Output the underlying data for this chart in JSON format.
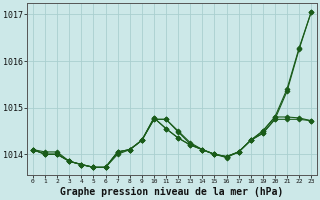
{
  "background_color": "#cce8e8",
  "grid_color": "#aacfcf",
  "line_color": "#1a5c1a",
  "xlabel": "Graphe pression niveau de la mer (hPa)",
  "xlabel_fontsize": 7,
  "xlim": [
    -0.5,
    23.5
  ],
  "ylim": [
    1013.55,
    1017.25
  ],
  "yticks": [
    1014,
    1015,
    1016,
    1017
  ],
  "xticks": [
    0,
    1,
    2,
    3,
    4,
    5,
    6,
    7,
    8,
    9,
    10,
    11,
    12,
    13,
    14,
    15,
    16,
    17,
    18,
    19,
    20,
    21,
    22,
    23
  ],
  "series": [
    {
      "y": [
        1014.1,
        1014.05,
        1014.05,
        1013.85,
        1013.78,
        1013.72,
        1013.72,
        1014.05,
        1014.1,
        1014.3,
        1014.75,
        1014.75,
        1014.5,
        1014.25,
        1014.1,
        1014.0,
        1013.95,
        1014.05,
        1014.3,
        1014.45,
        1014.75,
        1015.35,
        1016.25,
        1017.05
      ],
      "linestyle": "-",
      "marker": "D",
      "markersize": 2.5
    },
    {
      "y": [
        1014.1,
        1014.0,
        1014.0,
        1013.85,
        1013.78,
        1013.72,
        1013.72,
        1014.05,
        1014.1,
        1014.3,
        1014.75,
        1014.75,
        1014.48,
        1014.22,
        1014.1,
        1014.0,
        1013.95,
        1014.05,
        1014.3,
        1014.45,
        1014.75,
        1014.75,
        1014.75,
        1014.72
      ],
      "linestyle": "-",
      "marker": "D",
      "markersize": 2.5
    },
    {
      "y": [
        1014.1,
        1014.0,
        1014.0,
        1013.85,
        1013.78,
        1013.72,
        1013.72,
        1014.05,
        1014.1,
        1014.3,
        1014.78,
        1014.55,
        1014.35,
        1014.2,
        1014.1,
        1014.0,
        1013.95,
        1014.05,
        1014.3,
        1014.5,
        1014.8,
        1014.8,
        1014.78,
        1014.72
      ],
      "linestyle": "-",
      "marker": "D",
      "markersize": 2.5
    },
    {
      "y": [
        1014.1,
        1014.0,
        1014.0,
        1013.85,
        1013.78,
        1013.72,
        1013.72,
        1014.0,
        1014.1,
        1014.3,
        1014.78,
        1014.55,
        1014.35,
        1014.2,
        1014.1,
        1014.0,
        1013.93,
        1014.05,
        1014.3,
        1014.5,
        1014.8,
        1015.4,
        1016.28,
        1017.05
      ],
      "linestyle": "-",
      "marker": "D",
      "markersize": 2.5
    }
  ]
}
